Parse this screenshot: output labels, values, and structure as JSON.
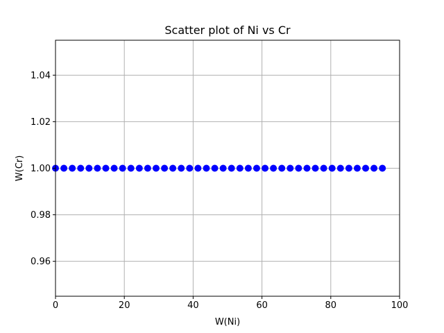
{
  "chart_data": {
    "type": "scatter",
    "title": "Scatter plot of Ni vs Cr",
    "xlabel": "W(Ni)",
    "ylabel": "W(Cr)",
    "xlim": [
      0,
      100
    ],
    "ylim": [
      0.945,
      1.055
    ],
    "xticks": [
      0,
      20,
      40,
      60,
      80,
      100
    ],
    "yticks": [
      0.96,
      0.98,
      1.0,
      1.02,
      1.04
    ],
    "ytick_labels": [
      "0.96",
      "0.98",
      "1.00",
      "1.02",
      "1.04"
    ],
    "grid": true,
    "marker_color": "#0000ff",
    "series": [
      {
        "x": [
          0,
          2.44,
          4.87,
          7.31,
          9.74,
          12.18,
          14.62,
          17.05,
          19.49,
          21.92,
          24.36,
          26.79,
          29.23,
          31.67,
          34.1,
          36.54,
          38.97,
          41.41,
          43.85,
          46.28,
          48.72,
          51.15,
          53.59,
          56.03,
          58.46,
          60.9,
          63.33,
          65.77,
          68.21,
          70.64,
          73.08,
          75.51,
          77.95,
          80.38,
          82.82,
          85.26,
          87.69,
          90.13,
          92.56,
          95
        ],
        "y": [
          1,
          1,
          1,
          1,
          1,
          1,
          1,
          1,
          1,
          1,
          1,
          1,
          1,
          1,
          1,
          1,
          1,
          1,
          1,
          1,
          1,
          1,
          1,
          1,
          1,
          1,
          1,
          1,
          1,
          1,
          1,
          1,
          1,
          1,
          1,
          1,
          1,
          1,
          1,
          1
        ]
      }
    ]
  }
}
